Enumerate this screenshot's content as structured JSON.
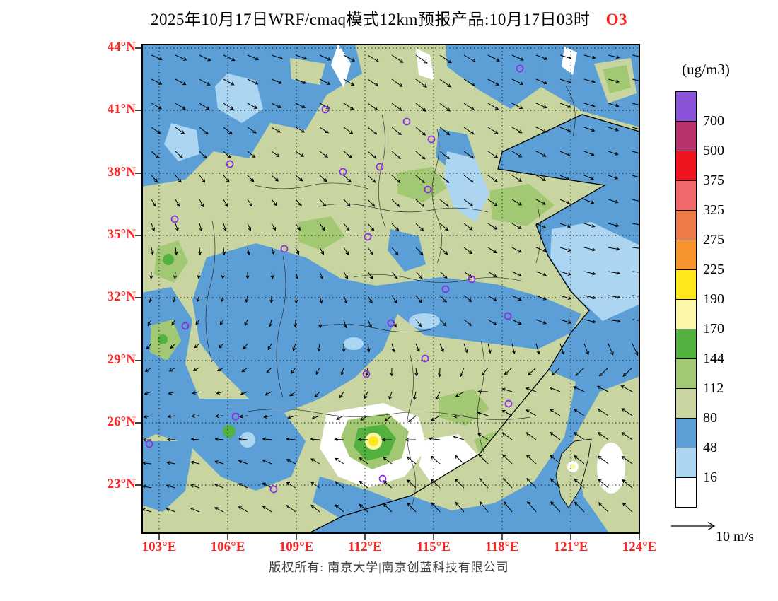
{
  "title": {
    "main": "2025年10月17日WRF/cmaq模式12km预报产品:10月17日03时",
    "species": "O3"
  },
  "footer": {
    "copyright": "版权所有: 南京大学|南京创蓝科技有限公司"
  },
  "axes": {
    "lat_labels": [
      "44°N",
      "41°N",
      "38°N",
      "35°N",
      "32°N",
      "29°N",
      "26°N",
      "23°N"
    ],
    "lon_labels": [
      "103°E",
      "106°E",
      "109°E",
      "112°E",
      "115°E",
      "118°E",
      "121°E",
      "124°E"
    ]
  },
  "legend": {
    "unit": "(ug/m3)",
    "entries": [
      {
        "key": "700",
        "label": "700",
        "color": "#8A52D9"
      },
      {
        "key": "500",
        "label": "500",
        "color": "#B8336E"
      },
      {
        "key": "375",
        "label": "375",
        "color": "#F0141E"
      },
      {
        "key": "325",
        "label": "325",
        "color": "#F2696B"
      },
      {
        "key": "275",
        "label": "275",
        "color": "#EE7C4A"
      },
      {
        "key": "225",
        "label": "225",
        "color": "#F79430"
      },
      {
        "key": "190",
        "label": "190",
        "color": "#FFE81A"
      },
      {
        "key": "170",
        "label": "170",
        "color": "#FBF7A8"
      },
      {
        "key": "144",
        "label": "144",
        "color": "#52B13F"
      },
      {
        "key": "112",
        "label": "112",
        "color": "#A3C873"
      },
      {
        "key": "80",
        "label": "80",
        "color": "#C9D5A0"
      },
      {
        "key": "48",
        "label": "48",
        "color": "#5B9FD6"
      },
      {
        "key": "16",
        "label": "16",
        "color": "#ACD5F2"
      },
      {
        "key": "min",
        "label": "",
        "color": "#FFFFFF"
      }
    ]
  },
  "wind_ref": {
    "label": "10 m/s"
  },
  "palette": {
    "axis_label_red": "#FF2222",
    "marker_violet": "#8B2BE2",
    "arrow_black": "#000000"
  },
  "wind_field": {
    "angles": [
      [
        20,
        25,
        15,
        30,
        35,
        25,
        15,
        10
      ],
      [
        30,
        35,
        25,
        35,
        40,
        30,
        20,
        15
      ],
      [
        50,
        55,
        40,
        45,
        40,
        35,
        25,
        15
      ],
      [
        80,
        90,
        70,
        55,
        45,
        30,
        15,
        5
      ],
      [
        120,
        130,
        100,
        70,
        50,
        30,
        15,
        5
      ],
      [
        160,
        170,
        150,
        120,
        100,
        200,
        210,
        215
      ],
      [
        185,
        195,
        205,
        215,
        220,
        225,
        220,
        215
      ],
      [
        200,
        210,
        220,
        225,
        230,
        235,
        230,
        225
      ]
    ],
    "speeds": [
      [
        16,
        18,
        16,
        18,
        20,
        18,
        16,
        16
      ],
      [
        16,
        16,
        14,
        16,
        18,
        16,
        16,
        14
      ],
      [
        12,
        12,
        12,
        14,
        16,
        16,
        14,
        14
      ],
      [
        10,
        10,
        10,
        12,
        14,
        14,
        16,
        16
      ],
      [
        10,
        8,
        10,
        12,
        12,
        14,
        16,
        18
      ],
      [
        10,
        10,
        10,
        10,
        12,
        14,
        16,
        18
      ],
      [
        12,
        12,
        14,
        14,
        16,
        18,
        18,
        18
      ],
      [
        14,
        14,
        16,
        16,
        18,
        18,
        20,
        18
      ]
    ]
  },
  "city_markers": [
    [
      260,
      93
    ],
    [
      375,
      110
    ],
    [
      410,
      135
    ],
    [
      535,
      35
    ],
    [
      125,
      170
    ],
    [
      285,
      181
    ],
    [
      337,
      174
    ],
    [
      405,
      206
    ],
    [
      320,
      273
    ],
    [
      202,
      290
    ],
    [
      47,
      248
    ],
    [
      430,
      347
    ],
    [
      467,
      333
    ],
    [
      518,
      385
    ],
    [
      62,
      399
    ],
    [
      353,
      395
    ],
    [
      318,
      467
    ],
    [
      401,
      445
    ],
    [
      519,
      509
    ],
    [
      133,
      527
    ],
    [
      11,
      566
    ],
    [
      341,
      615
    ],
    [
      187,
      630
    ]
  ]
}
